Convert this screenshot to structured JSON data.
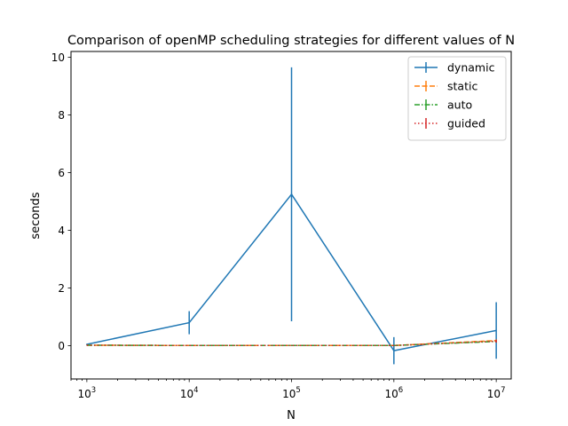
{
  "chart_data": {
    "type": "line",
    "title": "Comparison of openMP scheduling strategies for different values of N",
    "xlabel": "N",
    "ylabel": "seconds",
    "xscale": "log",
    "xlim": [
      700,
      14000000
    ],
    "ylim": [
      -1.15,
      10.2
    ],
    "grid": false,
    "legend_position": "top-right",
    "x": [
      1000,
      10000,
      100000,
      1000000,
      10000000
    ],
    "xticks": [
      {
        "value": 1000,
        "base": "10",
        "exp": "3"
      },
      {
        "value": 10000,
        "base": "10",
        "exp": "4"
      },
      {
        "value": 100000,
        "base": "10",
        "exp": "5"
      },
      {
        "value": 1000000,
        "base": "10",
        "exp": "6"
      },
      {
        "value": 10000000,
        "base": "10",
        "exp": "7"
      }
    ],
    "yticks": [
      {
        "value": 0,
        "label": "0"
      },
      {
        "value": 2,
        "label": "2"
      },
      {
        "value": 4,
        "label": "4"
      },
      {
        "value": 6,
        "label": "6"
      },
      {
        "value": 8,
        "label": "8"
      },
      {
        "value": 10,
        "label": "10"
      }
    ],
    "series": [
      {
        "name": "dynamic",
        "color": "#1f77b4",
        "dash": "solid",
        "values": [
          0.05,
          0.8,
          5.25,
          -0.17,
          0.53
        ],
        "errors": [
          0.02,
          0.4,
          4.4,
          0.47,
          0.98
        ]
      },
      {
        "name": "static",
        "color": "#ff7f0e",
        "dash": "dashed",
        "values": [
          0.02,
          0.01,
          0.01,
          0.01,
          0.18
        ],
        "errors": [
          0.005,
          0.005,
          0.005,
          0.01,
          0.04
        ]
      },
      {
        "name": "auto",
        "color": "#2ca02c",
        "dash": "dashdot",
        "values": [
          0.02,
          0.01,
          0.01,
          0.01,
          0.15
        ],
        "errors": [
          0.005,
          0.005,
          0.005,
          0.01,
          0.04
        ]
      },
      {
        "name": "guided",
        "color": "#d62728",
        "dash": "dotted",
        "values": [
          0.02,
          0.01,
          0.01,
          0.01,
          0.16
        ],
        "errors": [
          0.005,
          0.005,
          0.005,
          0.01,
          0.05
        ]
      }
    ]
  }
}
